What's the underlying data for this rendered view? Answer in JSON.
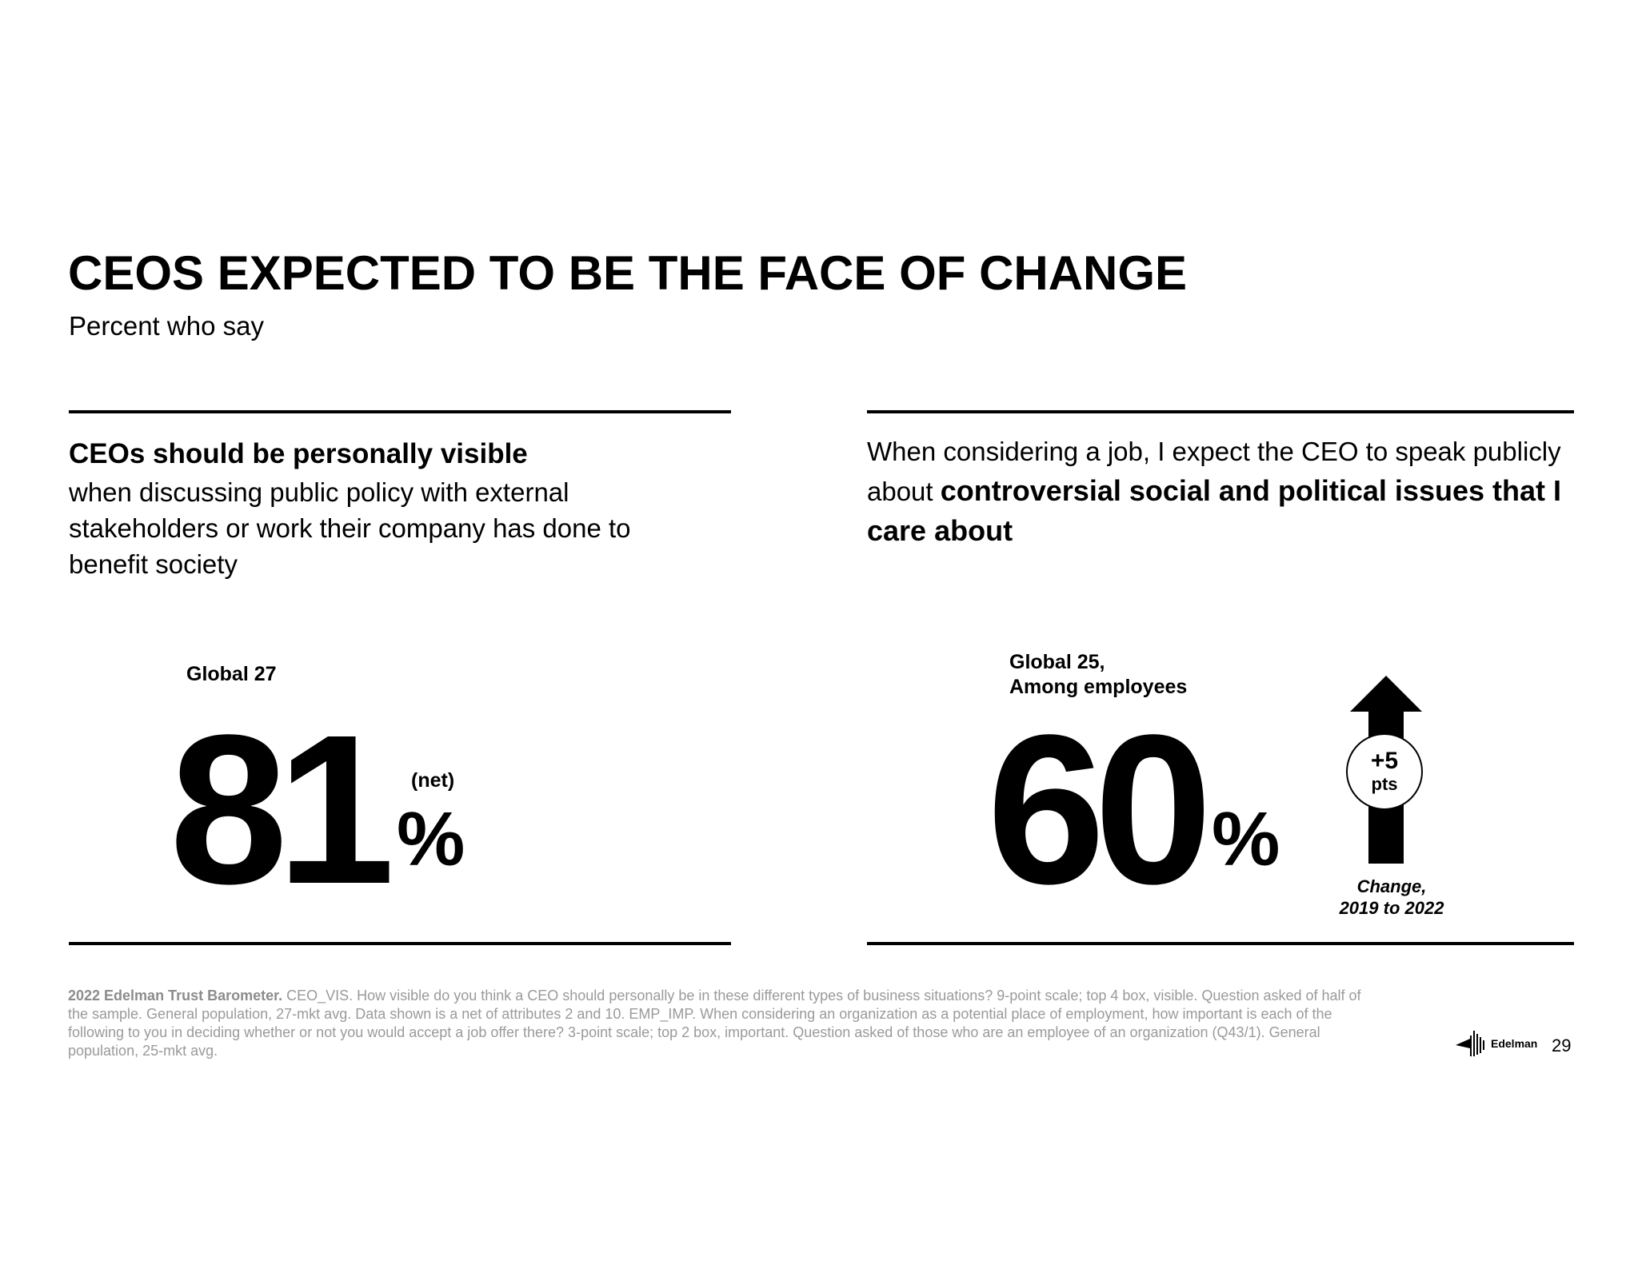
{
  "header": {
    "title": "CEOS EXPECTED TO BE THE FACE OF CHANGE",
    "subtitle": "Percent who say"
  },
  "left_panel": {
    "question_lead": "CEOs should be personally visible",
    "question_rest": "when discussing public policy with external stakeholders or work their company has done to benefit society",
    "global_label": "Global 27",
    "value": "81",
    "percent_sign": "%",
    "qualifier": "(net)"
  },
  "right_panel": {
    "question_pre": "When considering a job, I expect the CEO to speak publicly about ",
    "question_bold": "controversial social and political issues that I care about",
    "global_label_line1": "Global 25,",
    "global_label_line2": "Among employees",
    "value": "60",
    "percent_sign": "%",
    "change_value": "+5",
    "change_unit": "pts",
    "change_label_line1": "Change,",
    "change_label_line2": "2019 to 2022",
    "arrow_icon": "up-arrow-icon"
  },
  "footer": {
    "source_bold": "2022 Edelman Trust Barometer.",
    "source_text": " CEO_VIS. How visible do you think a CEO should personally be in these different types of business situations? 9-point scale; top 4 box, visible. Question asked of half of the sample. General population, 27-mkt avg. Data shown is a net of attributes 2 and 10. EMP_IMP. When considering an organization as a potential place of employment, how important is each of the following to you in deciding whether or not you would accept a job offer there? 3-point scale; top 2 box, important. Question asked of those who are an employee of an organization (Q43/1). General population, 25-mkt avg.",
    "logo_text": "Edelman",
    "page_number": "29"
  }
}
